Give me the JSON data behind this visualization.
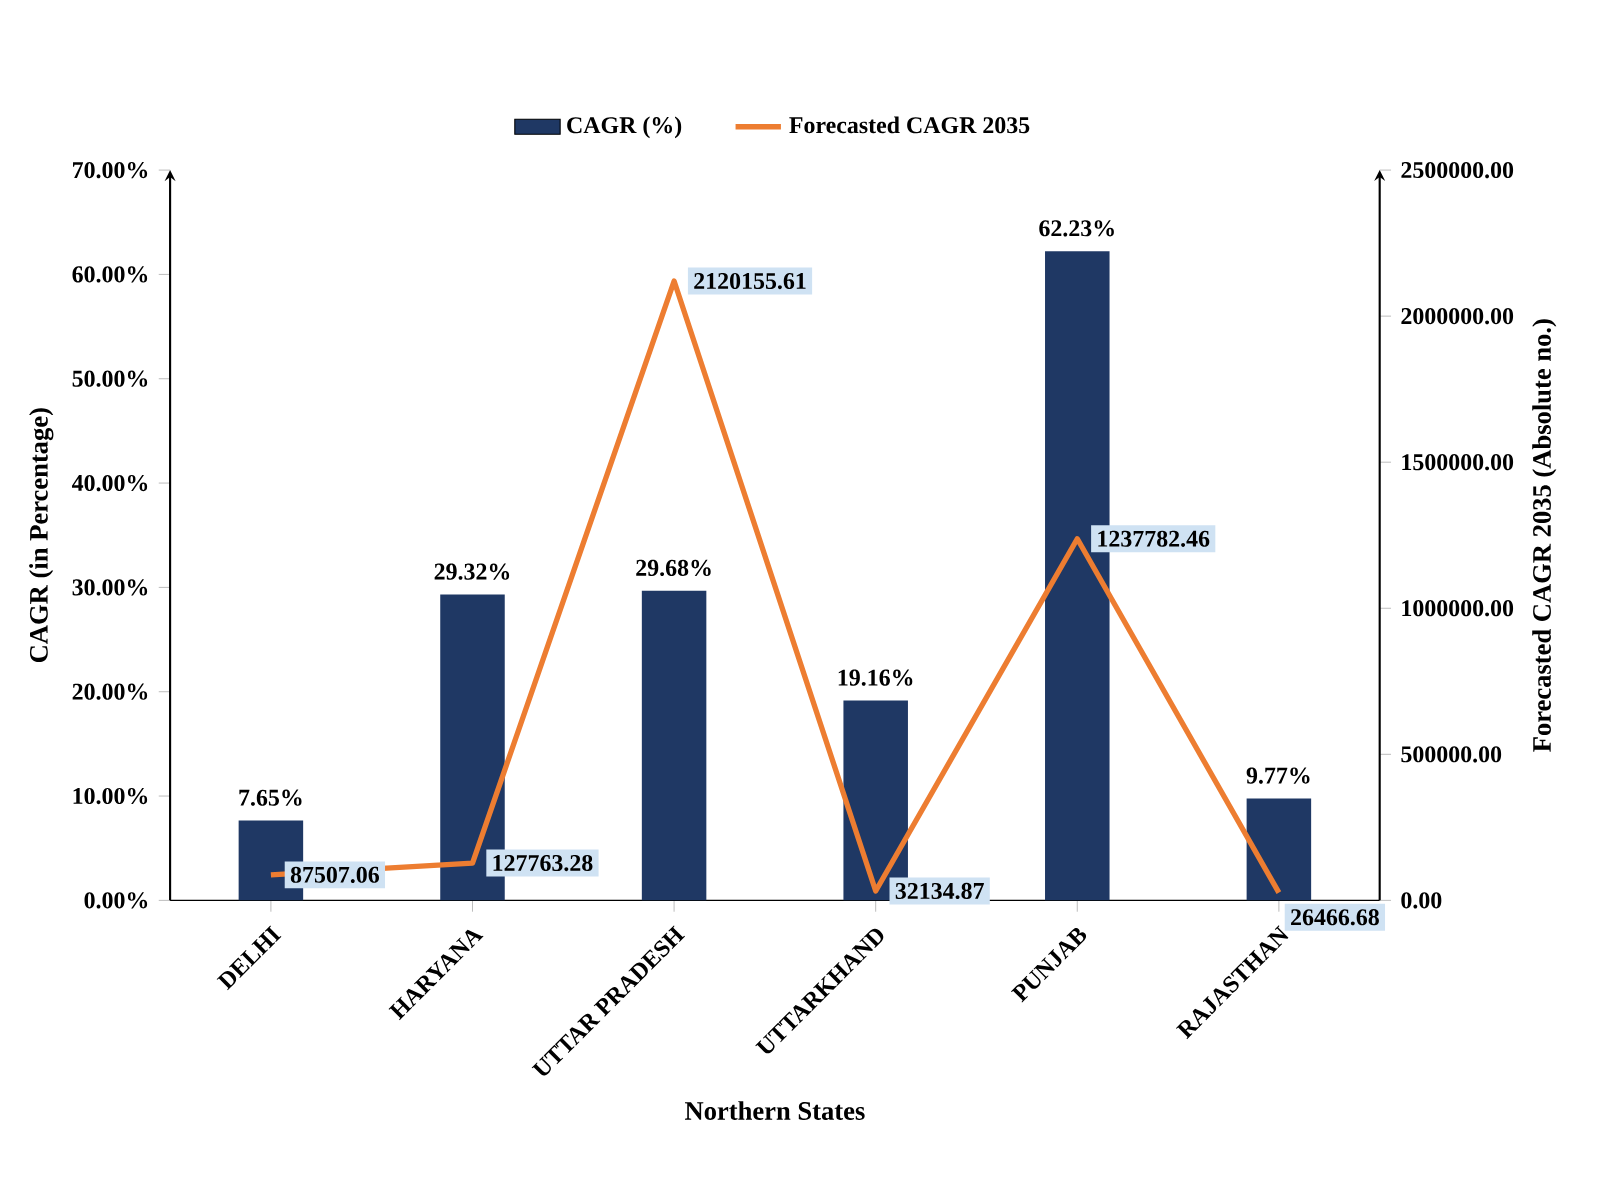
{
  "chart_data": {
    "type": "bar",
    "xlabel": "Northern States",
    "ylabel": "CAGR (in Percentage)",
    "y2label": "Forecasted CAGR 2035 (Absolute no.)",
    "categories": [
      "DELHI",
      "HARYANA",
      "UTTAR PRADESH",
      "UTTARKHAND",
      "PUNJAB",
      "RAJASTHAN"
    ],
    "series": [
      {
        "name": "CAGR (%)",
        "color": "#1f3864",
        "values": [
          7.65,
          29.32,
          29.68,
          19.16,
          62.23,
          9.77
        ],
        "value_labels": [
          "7.65%",
          "29.32%",
          "29.68%",
          "19.16%",
          "62.23%",
          "9.77%"
        ]
      },
      {
        "name": "Forecasted CAGR 2035",
        "type": "line",
        "axis": "y2",
        "color": "#ed7d31",
        "values": [
          87507.06,
          127763.28,
          2120155.61,
          32134.87,
          1237782.46,
          26466.68
        ],
        "value_labels": [
          "87507.06",
          "127763.28",
          "2120155.61",
          "32134.87",
          "1237782.46",
          "26466.68"
        ]
      }
    ],
    "ylim": [
      0,
      70
    ],
    "yticks": [
      {
        "value": 0,
        "label": "0.00%"
      },
      {
        "value": 10,
        "label": "10.00%"
      },
      {
        "value": 20,
        "label": "20.00%"
      },
      {
        "value": 30,
        "label": "30.00%"
      },
      {
        "value": 40,
        "label": "40.00%"
      },
      {
        "value": 50,
        "label": "50.00%"
      },
      {
        "value": 60,
        "label": "60.00%"
      },
      {
        "value": 70,
        "label": "70.00%"
      }
    ],
    "y2lim": [
      0,
      2500000
    ],
    "y2ticks": [
      {
        "value": 0,
        "label": "0.00"
      },
      {
        "value": 500000,
        "label": "500000.00"
      },
      {
        "value": 1000000,
        "label": "1000000.00"
      },
      {
        "value": 1500000,
        "label": "1500000.00"
      },
      {
        "value": 2000000,
        "label": "2000000.00"
      },
      {
        "value": 2500000,
        "label": "2500000.00"
      }
    ],
    "legend": "top"
  }
}
